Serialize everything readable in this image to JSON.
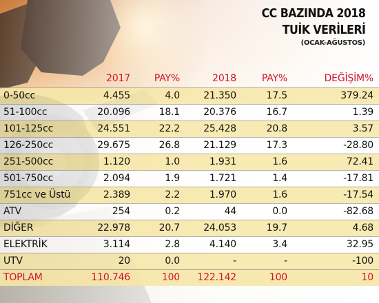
{
  "title": {
    "line1": "CC BAZINDA 2018",
    "line2": "TUİK VERİLERİ",
    "subtitle": "(OCAK-AĞUSTOS)"
  },
  "table": {
    "headers": [
      "",
      "2017",
      "PAY%",
      "2018",
      "PAY%",
      "DEĞİŞİM%"
    ],
    "rows": [
      [
        "0-50cc",
        "4.455",
        "4.0",
        "21.350",
        "17.5",
        "379.24"
      ],
      [
        "51-100cc",
        "20.096",
        "18.1",
        "20.376",
        "16.7",
        "1.39"
      ],
      [
        "101-125cc",
        "24.551",
        "22.2",
        "25.428",
        "20.8",
        "3.57"
      ],
      [
        "126-250cc",
        "29.675",
        "26.8",
        "21.129",
        "17.3",
        "-28.80"
      ],
      [
        "251-500cc",
        "1.120",
        "1.0",
        "1.931",
        "1.6",
        "72.41"
      ],
      [
        "501-750cc",
        "2.094",
        "1.9",
        "1.721",
        "1.4",
        "-17.81"
      ],
      [
        "751cc ve Üstü",
        "2.389",
        "2.2",
        "1.970",
        "1.6",
        "-17.54"
      ],
      [
        "ATV",
        "254",
        "0.2",
        "44",
        "0.0",
        "-82.68"
      ],
      [
        "DİĞER",
        "22.978",
        "20.7",
        "24.053",
        "19.7",
        "4.68"
      ],
      [
        "ELEKTRİK",
        "3.114",
        "2.8",
        "4.140",
        "3.4",
        "32.95"
      ],
      [
        "UTV",
        "20",
        "0.0",
        "-",
        "-",
        "-100"
      ],
      [
        "TOPLAM",
        "110.746",
        "100",
        "122.142",
        "100",
        "10"
      ]
    ]
  },
  "colors": {
    "header_red": "#d0142b",
    "row_highlight": "#f6e6a6",
    "sunset_orange": "#f08a2a"
  }
}
